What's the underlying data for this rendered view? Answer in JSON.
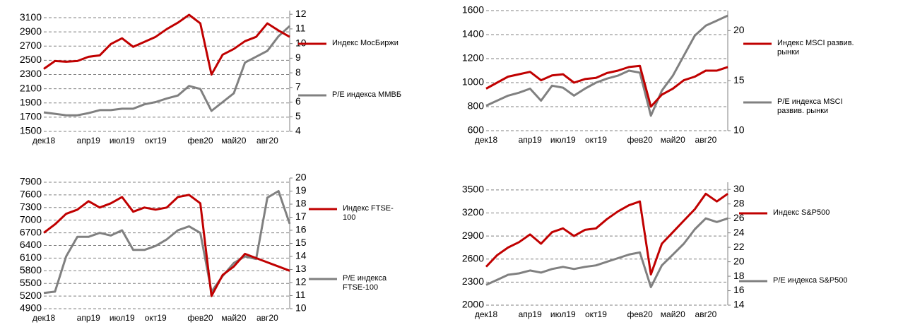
{
  "chart_data": [
    {
      "type": "line",
      "categories": [
        "дек18",
        null,
        null,
        null,
        "апр19",
        null,
        null,
        "июл19",
        null,
        null,
        "окт19",
        null,
        null,
        null,
        "фев20",
        null,
        null,
        "май20",
        null,
        null,
        "авг20",
        null,
        null
      ],
      "series": [
        {
          "name": "Индекс МосБиржи",
          "color": "#c00000",
          "values": [
            2380,
            2490,
            2480,
            2490,
            2550,
            2570,
            2730,
            2810,
            2690,
            2760,
            2830,
            2940,
            3030,
            3140,
            3020,
            2300,
            2580,
            2660,
            2770,
            2830,
            3020,
            2920,
            2830
          ]
        },
        {
          "name": "P/E индекса ММВБ",
          "color": "#808080",
          "axis": "y2",
          "values": [
            5.3,
            5.2,
            5.1,
            5.1,
            5.25,
            5.45,
            5.45,
            5.55,
            5.55,
            5.85,
            6.0,
            6.25,
            6.45,
            7.1,
            6.9,
            5.4,
            6.0,
            6.6,
            8.7,
            9.1,
            9.5,
            10.5,
            11.2
          ]
        }
      ],
      "ylim": [
        1500,
        3200
      ],
      "yticks": [
        1500,
        1700,
        1900,
        2100,
        2300,
        2500,
        2700,
        2900,
        3100
      ],
      "y2lim": [
        4,
        12.25
      ],
      "y2ticks": [
        4,
        5,
        6,
        7,
        8,
        9,
        10,
        11,
        12
      ],
      "grid": true
    },
    {
      "type": "line",
      "categories": [
        "дек18",
        null,
        null,
        null,
        "апр19",
        null,
        null,
        "июл19",
        null,
        null,
        "окт19",
        null,
        null,
        null,
        "фев20",
        null,
        null,
        "май20",
        null,
        null,
        "авг20",
        null,
        null
      ],
      "series": [
        {
          "name": "Индекс MSCI развив. рынки",
          "color": "#c00000",
          "values": [
            950,
            1000,
            1050,
            1070,
            1090,
            1020,
            1060,
            1070,
            1000,
            1030,
            1040,
            1080,
            1100,
            1130,
            1140,
            800,
            900,
            950,
            1020,
            1050,
            1100,
            1100,
            1130
          ]
        },
        {
          "name": "P/E индекса MSCI развив. рынки",
          "color": "#808080",
          "axis": "y2",
          "values": [
            12.5,
            13.0,
            13.5,
            13.8,
            14.2,
            13.0,
            14.5,
            14.3,
            13.5,
            14.2,
            14.8,
            15.2,
            15.5,
            16.0,
            15.8,
            11.5,
            14.0,
            15.5,
            17.5,
            19.5,
            20.5,
            21.0,
            21.5
          ]
        }
      ],
      "ylim": [
        600,
        1600
      ],
      "yticks": [
        600,
        800,
        1000,
        1200,
        1400,
        1600
      ],
      "y2lim": [
        10,
        22
      ],
      "y2ticks": [
        10,
        15,
        20
      ],
      "grid": true
    },
    {
      "type": "line",
      "categories": [
        "дек18",
        null,
        null,
        null,
        "апр19",
        null,
        null,
        "июл19",
        null,
        null,
        "окт19",
        null,
        null,
        null,
        "фев20",
        null,
        null,
        "май20",
        null,
        null,
        "авг20",
        null,
        null
      ],
      "series": [
        {
          "name": "Индекс FTSE-100",
          "color": "#c00000",
          "values": [
            6700,
            6900,
            7150,
            7250,
            7450,
            7300,
            7400,
            7550,
            7200,
            7300,
            7250,
            7300,
            7550,
            7600,
            7400,
            5200,
            5700,
            5900,
            6200,
            6100,
            6000,
            5900,
            5800
          ]
        },
        {
          "name": "P/E индекса FTSE-100",
          "color": "#808080",
          "axis": "y2",
          "values": [
            11.2,
            11.3,
            14.0,
            15.5,
            15.5,
            15.8,
            15.6,
            16.0,
            14.5,
            14.5,
            14.8,
            15.3,
            16.0,
            16.3,
            15.8,
            11.3,
            12.5,
            13.5,
            14.0,
            13.8,
            18.5,
            19.0,
            16.5
          ]
        }
      ],
      "ylim": [
        4900,
        8000
      ],
      "yticks": [
        4900,
        5200,
        5500,
        5800,
        6100,
        6400,
        6700,
        7000,
        7300,
        7600,
        7900
      ],
      "y2lim": [
        10,
        20
      ],
      "y2ticks": [
        10,
        11,
        12,
        13,
        14,
        15,
        16,
        17,
        18,
        19,
        20
      ],
      "grid": true
    },
    {
      "type": "line",
      "categories": [
        "дек18",
        null,
        null,
        null,
        "апр19",
        null,
        null,
        "июл19",
        null,
        null,
        "окт19",
        null,
        null,
        null,
        "фев20",
        null,
        null,
        "май20",
        null,
        null,
        "авг20",
        null,
        null
      ],
      "series": [
        {
          "name": "Индекс S&P500",
          "color": "#c00000",
          "values": [
            2500,
            2650,
            2750,
            2820,
            2920,
            2800,
            2950,
            3000,
            2900,
            2980,
            3000,
            3120,
            3220,
            3300,
            3350,
            2400,
            2800,
            2950,
            3100,
            3250,
            3450,
            3350,
            3450
          ]
        },
        {
          "name": "P/E индекса S&P500",
          "color": "#808080",
          "axis": "y2",
          "values": [
            16.8,
            17.5,
            18.2,
            18.4,
            18.8,
            18.5,
            19.0,
            19.3,
            19.0,
            19.3,
            19.5,
            20.0,
            20.5,
            21.0,
            21.3,
            16.5,
            19.5,
            21.0,
            22.5,
            24.5,
            26.0,
            25.5,
            26.0
          ]
        }
      ],
      "ylim": [
        2000,
        3600
      ],
      "yticks": [
        2000,
        2300,
        2600,
        2900,
        3200,
        3500
      ],
      "y2lim": [
        14,
        31
      ],
      "y2ticks": [
        14,
        16,
        18,
        20,
        22,
        24,
        26,
        28,
        30
      ],
      "grid": true
    }
  ]
}
